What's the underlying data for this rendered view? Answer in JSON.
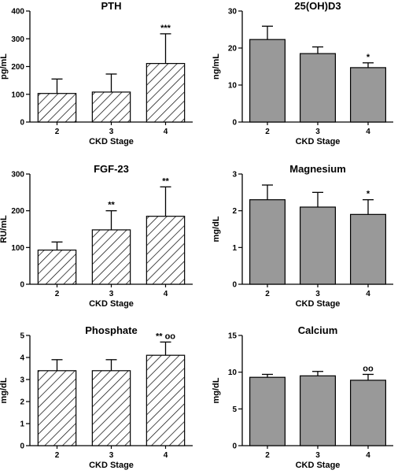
{
  "chart_data": [
    {
      "type": "bar",
      "title": "PTH",
      "xlabel": "CKD Stage",
      "ylabel": "pg/mL",
      "categories": [
        "2",
        "3",
        "4"
      ],
      "values": [
        103,
        108,
        211
      ],
      "errors": [
        52,
        65,
        107
      ],
      "annotations": [
        "",
        "",
        "***"
      ],
      "ylim": [
        0,
        400
      ],
      "yticks": [
        "0",
        "100",
        "200",
        "300",
        "400"
      ],
      "style": "hatched"
    },
    {
      "type": "bar",
      "title": "25(OH)D3",
      "xlabel": "CKD Stage",
      "ylabel": "ng/mL",
      "categories": [
        "2",
        "3",
        "4"
      ],
      "values": [
        22.3,
        18.5,
        14.7
      ],
      "errors": [
        3.6,
        1.8,
        1.3
      ],
      "annotations": [
        "",
        "",
        "*"
      ],
      "ylim": [
        0,
        30
      ],
      "yticks": [
        "0",
        "10",
        "20",
        "30"
      ],
      "style": "gray"
    },
    {
      "type": "bar",
      "title": "FGF-23",
      "xlabel": "CKD Stage",
      "ylabel": "RU/mL",
      "categories": [
        "2",
        "3",
        "4"
      ],
      "values": [
        93,
        148,
        185
      ],
      "errors": [
        22,
        52,
        80
      ],
      "annotations": [
        "",
        "**",
        "**"
      ],
      "ylim": [
        0,
        300
      ],
      "yticks": [
        "0",
        "100",
        "200",
        "300"
      ],
      "style": "hatched"
    },
    {
      "type": "bar",
      "title": "Magnesium",
      "xlabel": "CKD Stage",
      "ylabel": "mg/dL",
      "categories": [
        "2",
        "3",
        "4"
      ],
      "values": [
        2.3,
        2.1,
        1.9
      ],
      "errors": [
        0.4,
        0.4,
        0.4
      ],
      "annotations": [
        "",
        "",
        "*"
      ],
      "ylim": [
        0,
        3
      ],
      "yticks": [
        "0",
        "1",
        "2",
        "3"
      ],
      "style": "gray"
    },
    {
      "type": "bar",
      "title": "Phosphate",
      "xlabel": "CKD Stage",
      "ylabel": "mg/dL",
      "categories": [
        "2",
        "3",
        "4"
      ],
      "values": [
        3.4,
        3.4,
        4.1
      ],
      "errors": [
        0.5,
        0.5,
        0.6
      ],
      "annotations": [
        "",
        "",
        "** oo"
      ],
      "ylim": [
        0,
        5
      ],
      "yticks": [
        "0",
        "1",
        "2",
        "3",
        "4",
        "5"
      ],
      "style": "hatched"
    },
    {
      "type": "bar",
      "title": "Calcium",
      "xlabel": "CKD Stage",
      "ylabel": "mg/dL",
      "categories": [
        "2",
        "3",
        "4"
      ],
      "values": [
        9.3,
        9.5,
        8.9
      ],
      "errors": [
        0.4,
        0.6,
        0.8
      ],
      "annotations": [
        "",
        "",
        "oo"
      ],
      "ylim": [
        0,
        15
      ],
      "yticks": [
        "0",
        "5",
        "10",
        "15"
      ],
      "style": "gray"
    }
  ]
}
